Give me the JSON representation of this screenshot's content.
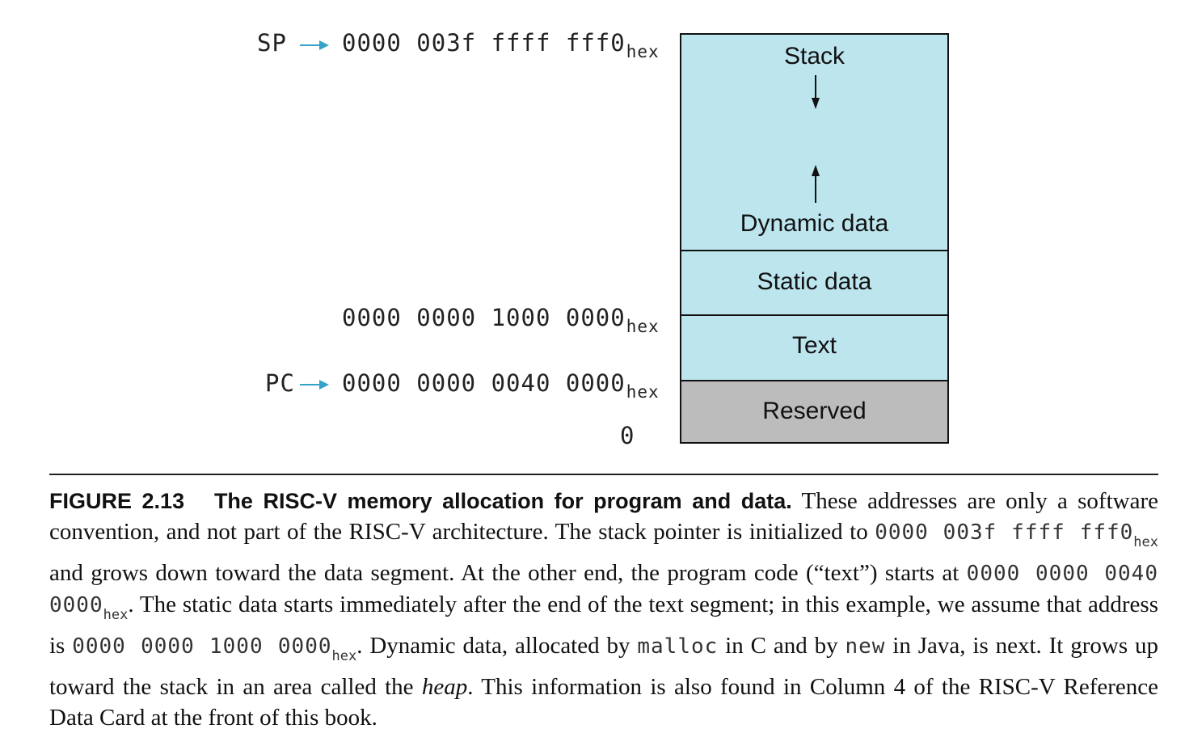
{
  "addresses": {
    "sp_register": "SP",
    "sp_value": "0000 003f ffff fff0",
    "static_value": "0000 0000 1000 0000",
    "pc_register": "PC",
    "pc_value": "0000 0000 0040 0000",
    "zero": "0",
    "hex_suffix": "hex"
  },
  "memory": {
    "stack": "Stack",
    "dynamic": "Dynamic data",
    "static": "Static data",
    "text": "Text",
    "reserved": "Reserved"
  },
  "colors": {
    "segment_fill": "#bde5ee",
    "reserved_fill": "#bcbcbc",
    "arrow": "#35a3c8"
  },
  "caption": {
    "figure": "FIGURE 2.13",
    "title": "The RISC-V memory allocation for program and data.",
    "t1": " These addresses are only a software convention, and not part of the RISC-V architecture. The stack pointer is initialized to ",
    "c1": "0000 003f ffff fff0",
    "s1": "hex",
    "t2": " and grows down toward the data segment. At the other end, the program code (“text”) starts at ",
    "c2": "0000 0000 0040 0000",
    "s2": "hex",
    "t3": ". The static data starts immediately after the end of the text segment; in this example, we assume that address is ",
    "c3": "0000 0000 1000 0000",
    "s3": "hex",
    "t4": ". Dynamic data, allocated by ",
    "c4": "malloc",
    "t5": " in C and by ",
    "c5": "new",
    "t6": " in Java, is next. It grows up toward the stack in an area called the ",
    "heap": "heap",
    "t7": ". This information is also found in Column 4 of the RISC-V Reference Data Card at the front of this book."
  }
}
